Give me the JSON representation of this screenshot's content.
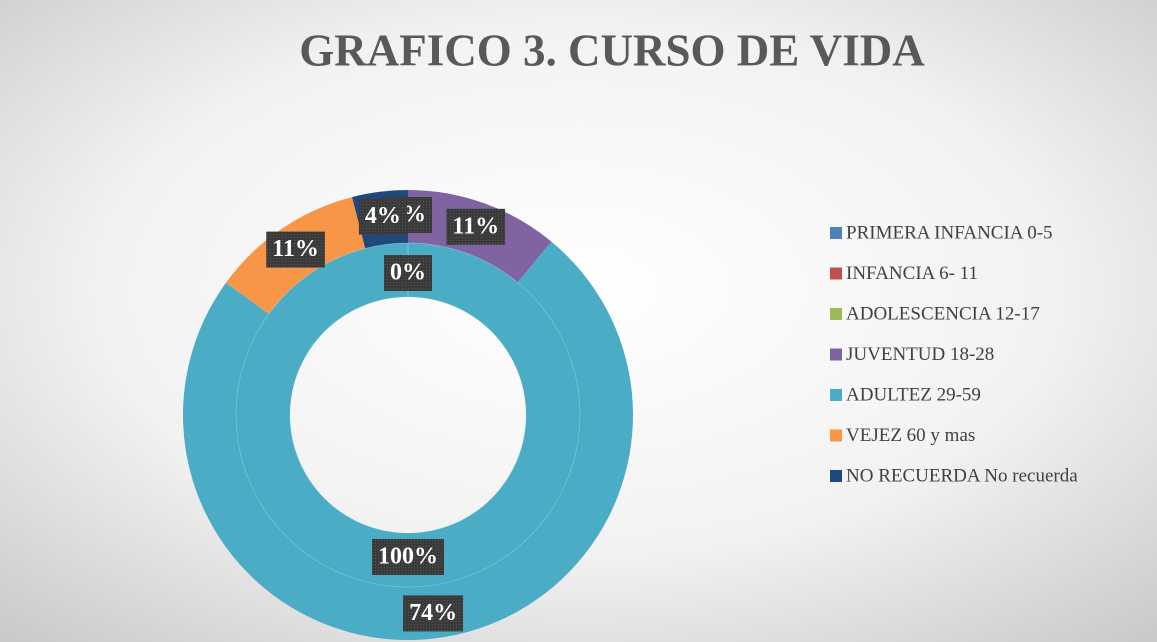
{
  "chart_data": {
    "type": "doughnut",
    "title": "GRAFICO 3. CURSO DE VIDA",
    "categories": [
      "PRIMERA INFANCIA 0-5",
      "INFANCIA 6-  11",
      "ADOLESCENCIA  12-17",
      "JUVENTUD 18-28",
      "ADULTEZ 29-59",
      "VEJEZ 60 y mas",
      "NO RECUERDA No recuerda"
    ],
    "colors": [
      "#4f81bd",
      "#c0504d",
      "#9bbb59",
      "#8064a2",
      "#4bacc6",
      "#f79646",
      "#1f497d"
    ],
    "series": [
      {
        "values": [
          0,
          0,
          0,
          11,
          74,
          11,
          4
        ],
        "value_labels": [
          "0%",
          "0%",
          "0%",
          "11%",
          "74%",
          "11%",
          "4%"
        ]
      },
      {
        "values": [
          0,
          0,
          0,
          0,
          100,
          0,
          0
        ],
        "value_labels": [
          "0%",
          "0%",
          "0%",
          "0%",
          "100%",
          "0%",
          "0%"
        ]
      }
    ],
    "legend": "right"
  }
}
